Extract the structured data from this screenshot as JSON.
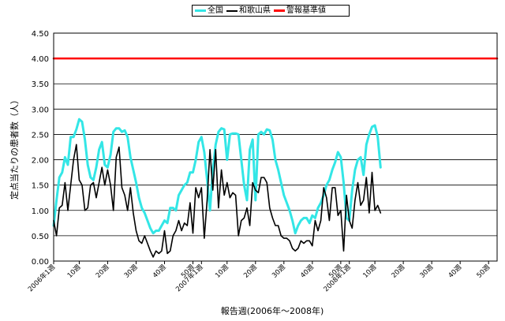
{
  "chart_data": {
    "type": "line",
    "ylabel": "定点当たりの患者数（人）",
    "xlabel": "報告週(2006年～2008年)",
    "ylim": [
      0,
      4.5
    ],
    "yticks": [
      "0.00",
      "0.50",
      "1.00",
      "1.50",
      "2.00",
      "2.50",
      "3.00",
      "3.50",
      "4.00",
      "4.50"
    ],
    "xlim": [
      1,
      157
    ],
    "xticks": [
      {
        "x": 1,
        "label": "2006年1週"
      },
      {
        "x": 10,
        "label": "10週"
      },
      {
        "x": 20,
        "label": "20週"
      },
      {
        "x": 30,
        "label": "30週"
      },
      {
        "x": 40,
        "label": "40週"
      },
      {
        "x": 50,
        "label": "50週"
      },
      {
        "x": 53,
        "label": "2007年1週"
      },
      {
        "x": 62,
        "label": "10週"
      },
      {
        "x": 72,
        "label": "20週"
      },
      {
        "x": 82,
        "label": "30週"
      },
      {
        "x": 92,
        "label": "40週"
      },
      {
        "x": 102,
        "label": "50週"
      },
      {
        "x": 105,
        "label": "2008年1週"
      },
      {
        "x": 114,
        "label": "10週"
      },
      {
        "x": 124,
        "label": "20週"
      },
      {
        "x": 134,
        "label": "30週"
      },
      {
        "x": 144,
        "label": "40週"
      },
      {
        "x": 154,
        "label": "50週"
      }
    ],
    "grid": true,
    "legend_position": "top-center",
    "series": [
      {
        "name": "全国",
        "color": "#33e6e6",
        "points": [
          [
            1,
            0.7
          ],
          [
            2,
            1.2
          ],
          [
            3,
            1.65
          ],
          [
            4,
            1.75
          ],
          [
            5,
            2.05
          ],
          [
            6,
            1.9
          ],
          [
            7,
            2.45
          ],
          [
            8,
            2.45
          ],
          [
            9,
            2.6
          ],
          [
            10,
            2.8
          ],
          [
            11,
            2.75
          ],
          [
            12,
            2.4
          ],
          [
            13,
            1.9
          ],
          [
            14,
            1.65
          ],
          [
            15,
            1.6
          ],
          [
            16,
            1.85
          ],
          [
            17,
            2.2
          ],
          [
            18,
            2.35
          ],
          [
            19,
            1.9
          ],
          [
            20,
            1.85
          ],
          [
            21,
            2.1
          ],
          [
            22,
            2.55
          ],
          [
            23,
            2.62
          ],
          [
            24,
            2.62
          ],
          [
            25,
            2.55
          ],
          [
            26,
            2.58
          ],
          [
            27,
            2.45
          ],
          [
            28,
            2.05
          ],
          [
            29,
            1.8
          ],
          [
            30,
            1.55
          ],
          [
            31,
            1.25
          ],
          [
            32,
            1.05
          ],
          [
            33,
            0.95
          ],
          [
            34,
            0.8
          ],
          [
            35,
            0.65
          ],
          [
            36,
            0.55
          ],
          [
            37,
            0.6
          ],
          [
            38,
            0.6
          ],
          [
            39,
            0.7
          ],
          [
            40,
            0.8
          ],
          [
            41,
            0.75
          ],
          [
            42,
            1.05
          ],
          [
            43,
            1.05
          ],
          [
            44,
            1.0
          ],
          [
            45,
            1.3
          ],
          [
            46,
            1.4
          ],
          [
            47,
            1.5
          ],
          [
            48,
            1.55
          ],
          [
            49,
            1.75
          ],
          [
            50,
            1.75
          ],
          [
            51,
            2.0
          ],
          [
            52,
            2.35
          ],
          [
            53,
            2.45
          ],
          [
            54,
            2.15
          ],
          [
            55,
            1.6
          ],
          [
            56,
            1.0
          ],
          [
            57,
            1.8
          ],
          [
            58,
            2.3
          ],
          [
            59,
            2.55
          ],
          [
            60,
            2.62
          ],
          [
            61,
            2.6
          ],
          [
            62,
            2.0
          ],
          [
            63,
            2.5
          ],
          [
            64,
            2.52
          ],
          [
            65,
            2.52
          ],
          [
            66,
            2.5
          ],
          [
            67,
            2.0
          ],
          [
            68,
            1.5
          ],
          [
            69,
            1.2
          ],
          [
            70,
            2.2
          ],
          [
            71,
            2.4
          ],
          [
            72,
            1.2
          ],
          [
            73,
            2.5
          ],
          [
            74,
            2.55
          ],
          [
            75,
            2.5
          ],
          [
            76,
            2.6
          ],
          [
            77,
            2.58
          ],
          [
            78,
            2.4
          ],
          [
            79,
            2.0
          ],
          [
            80,
            1.8
          ],
          [
            81,
            1.55
          ],
          [
            82,
            1.3
          ],
          [
            83,
            1.15
          ],
          [
            84,
            1.0
          ],
          [
            85,
            0.8
          ],
          [
            86,
            0.55
          ],
          [
            87,
            0.7
          ],
          [
            88,
            0.8
          ],
          [
            89,
            0.85
          ],
          [
            90,
            0.85
          ],
          [
            91,
            0.75
          ],
          [
            92,
            0.9
          ],
          [
            93,
            0.85
          ],
          [
            94,
            1.05
          ],
          [
            95,
            1.15
          ],
          [
            96,
            1.3
          ],
          [
            97,
            1.5
          ],
          [
            98,
            1.6
          ],
          [
            99,
            1.8
          ],
          [
            100,
            1.95
          ],
          [
            101,
            2.15
          ],
          [
            102,
            2.05
          ],
          [
            103,
            1.55
          ],
          [
            104,
            0.85
          ],
          [
            105,
            0.8
          ],
          [
            106,
            1.4
          ],
          [
            107,
            1.8
          ],
          [
            108,
            2.0
          ],
          [
            109,
            2.05
          ],
          [
            110,
            1.7
          ],
          [
            111,
            2.3
          ],
          [
            112,
            2.5
          ],
          [
            113,
            2.65
          ],
          [
            114,
            2.68
          ],
          [
            115,
            2.45
          ],
          [
            116,
            1.85
          ]
        ]
      },
      {
        "name": "和歌山県",
        "color": "#000000",
        "points": [
          [
            1,
            0.8
          ],
          [
            2,
            0.5
          ],
          [
            3,
            1.05
          ],
          [
            4,
            1.1
          ],
          [
            5,
            1.55
          ],
          [
            6,
            1.0
          ],
          [
            7,
            1.5
          ],
          [
            8,
            2.0
          ],
          [
            9,
            2.3
          ],
          [
            10,
            1.6
          ],
          [
            11,
            1.5
          ],
          [
            12,
            1.0
          ],
          [
            13,
            1.05
          ],
          [
            14,
            1.5
          ],
          [
            15,
            1.55
          ],
          [
            16,
            1.25
          ],
          [
            17,
            1.55
          ],
          [
            18,
            1.85
          ],
          [
            19,
            1.5
          ],
          [
            20,
            1.8
          ],
          [
            21,
            1.5
          ],
          [
            22,
            1.0
          ],
          [
            23,
            2.05
          ],
          [
            24,
            2.25
          ],
          [
            25,
            1.45
          ],
          [
            26,
            1.3
          ],
          [
            27,
            1.0
          ],
          [
            28,
            1.45
          ],
          [
            29,
            0.95
          ],
          [
            30,
            0.6
          ],
          [
            31,
            0.4
          ],
          [
            32,
            0.35
          ],
          [
            33,
            0.5
          ],
          [
            34,
            0.35
          ],
          [
            35,
            0.2
          ],
          [
            36,
            0.08
          ],
          [
            37,
            0.2
          ],
          [
            38,
            0.15
          ],
          [
            39,
            0.2
          ],
          [
            40,
            0.6
          ],
          [
            41,
            0.15
          ],
          [
            42,
            0.2
          ],
          [
            43,
            0.5
          ],
          [
            44,
            0.6
          ],
          [
            45,
            0.8
          ],
          [
            46,
            0.6
          ],
          [
            47,
            0.75
          ],
          [
            48,
            0.7
          ],
          [
            49,
            1.15
          ],
          [
            50,
            0.55
          ],
          [
            51,
            1.45
          ],
          [
            52,
            1.25
          ],
          [
            53,
            1.45
          ],
          [
            54,
            0.45
          ],
          [
            55,
            1.2
          ],
          [
            56,
            2.2
          ],
          [
            57,
            1.4
          ],
          [
            58,
            2.2
          ],
          [
            59,
            1.05
          ],
          [
            60,
            1.8
          ],
          [
            61,
            1.3
          ],
          [
            62,
            1.55
          ],
          [
            63,
            1.25
          ],
          [
            64,
            1.35
          ],
          [
            65,
            1.3
          ],
          [
            66,
            0.5
          ],
          [
            67,
            0.8
          ],
          [
            68,
            0.85
          ],
          [
            69,
            1.05
          ],
          [
            70,
            0.7
          ],
          [
            71,
            1.55
          ],
          [
            72,
            1.4
          ],
          [
            73,
            1.35
          ],
          [
            74,
            1.65
          ],
          [
            75,
            1.65
          ],
          [
            76,
            1.55
          ],
          [
            77,
            1.05
          ],
          [
            78,
            0.85
          ],
          [
            79,
            0.7
          ],
          [
            80,
            0.7
          ],
          [
            81,
            0.5
          ],
          [
            82,
            0.45
          ],
          [
            83,
            0.45
          ],
          [
            84,
            0.4
          ],
          [
            85,
            0.25
          ],
          [
            86,
            0.2
          ],
          [
            87,
            0.25
          ],
          [
            88,
            0.4
          ],
          [
            89,
            0.35
          ],
          [
            90,
            0.4
          ],
          [
            91,
            0.4
          ],
          [
            92,
            0.3
          ],
          [
            93,
            0.8
          ],
          [
            94,
            0.6
          ],
          [
            95,
            0.8
          ],
          [
            96,
            1.45
          ],
          [
            97,
            1.25
          ],
          [
            98,
            0.8
          ],
          [
            99,
            1.45
          ],
          [
            100,
            1.45
          ],
          [
            101,
            0.9
          ],
          [
            102,
            1.0
          ],
          [
            103,
            0.2
          ],
          [
            104,
            1.3
          ],
          [
            105,
            0.8
          ],
          [
            106,
            0.65
          ],
          [
            107,
            1.2
          ],
          [
            108,
            1.55
          ],
          [
            109,
            1.1
          ],
          [
            110,
            1.2
          ],
          [
            111,
            1.65
          ],
          [
            112,
            0.95
          ],
          [
            113,
            1.75
          ],
          [
            114,
            1.0
          ],
          [
            115,
            1.1
          ],
          [
            116,
            0.95
          ]
        ]
      },
      {
        "name": "警報基準値",
        "color": "#ff0000",
        "points": [
          [
            1,
            4.0
          ],
          [
            157,
            4.0
          ]
        ]
      }
    ]
  }
}
